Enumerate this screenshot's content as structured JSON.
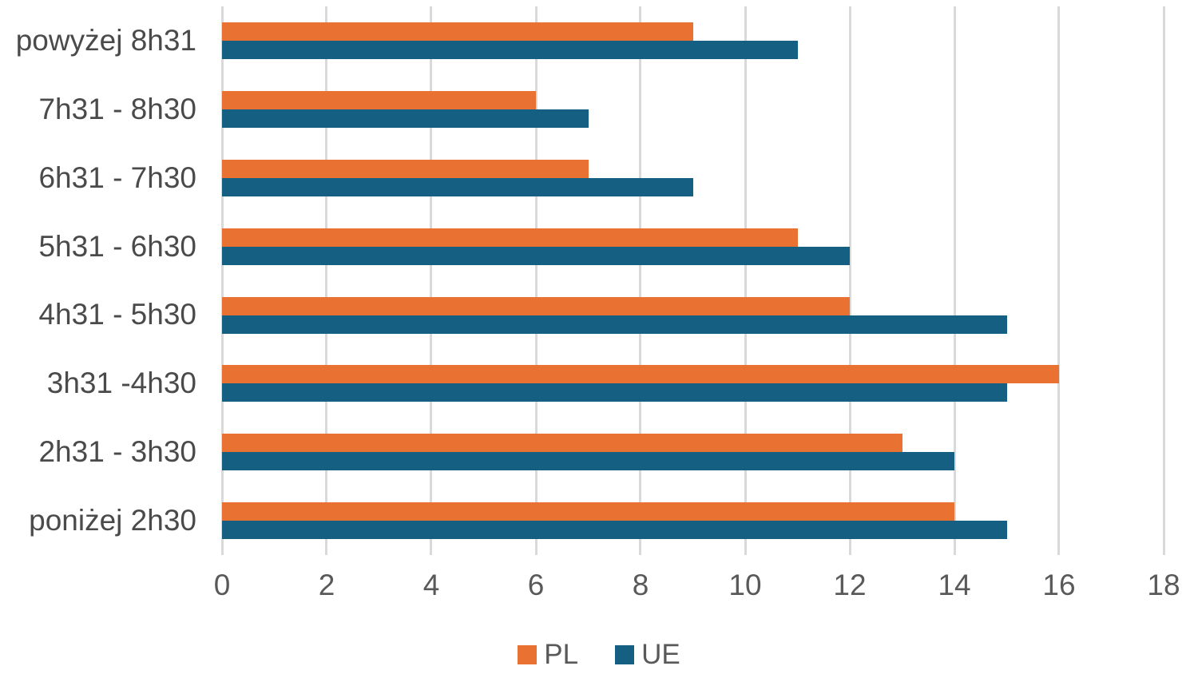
{
  "chart_data": {
    "type": "bar",
    "orientation": "horizontal",
    "title": "",
    "xlabel": "",
    "ylabel": "",
    "categories": [
      "powyżej 8h31",
      "7h31 - 8h30",
      "6h31 - 7h30",
      "5h31 - 6h30",
      "4h31 - 5h30",
      "3h31 -4h30",
      "2h31 - 3h30",
      "poniżej 2h30"
    ],
    "series": [
      {
        "name": "PL",
        "color": "#E97132",
        "values": [
          9,
          6,
          7,
          11,
          12,
          16,
          13,
          14
        ]
      },
      {
        "name": "UE",
        "color": "#156082",
        "values": [
          11,
          7,
          9,
          12,
          15,
          15,
          14,
          15
        ]
      }
    ],
    "xlim": [
      0,
      18
    ],
    "x_ticks": [
      0,
      2,
      4,
      6,
      8,
      10,
      12,
      14,
      16,
      18
    ],
    "grid": true,
    "gridline_color": "#D9D9D9",
    "tick_text_color": "#595959",
    "category_text_color": "#4A4A4A",
    "legend_position": "bottom"
  }
}
